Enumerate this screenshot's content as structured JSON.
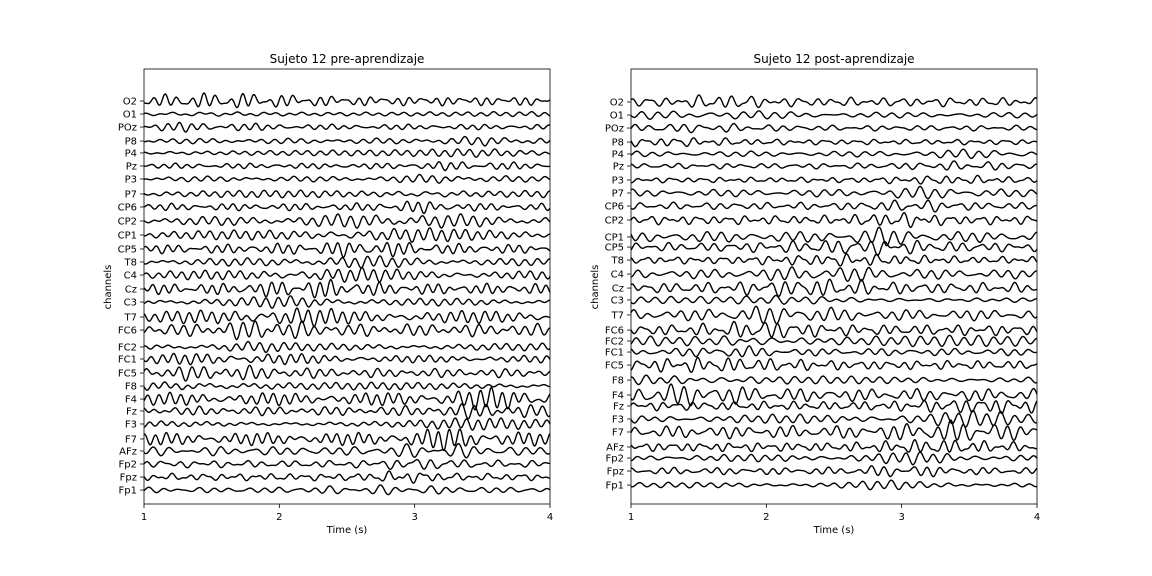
{
  "chart_data": [
    {
      "type": "line",
      "title": "Sujeto 12 pre-aprendizaje",
      "xlabel": "Time (s)",
      "ylabel": "channels",
      "xlim": [
        1,
        4
      ],
      "xticks": [
        1,
        2,
        3,
        4
      ],
      "grid": false,
      "channels": [
        "O2",
        "O1",
        "POz",
        "P8",
        "P4",
        "Pz",
        "P3",
        "P7",
        "CP6",
        "CP2",
        "CP1",
        "CP5",
        "T8",
        "C4",
        "Cz",
        "C3",
        "T7",
        "FC6",
        "FC2",
        "FC1",
        "FC5",
        "F8",
        "F4",
        "Fz",
        "F3",
        "F7",
        "AFz",
        "Fp2",
        "Fpz",
        "Fp1"
      ],
      "channel_offsets": [
        0.0,
        0.93,
        1.86,
        2.86,
        3.71,
        4.64,
        5.57,
        6.64,
        7.57,
        8.57,
        9.57,
        10.57,
        11.5,
        12.43,
        13.43,
        14.36,
        15.43,
        16.36,
        17.57,
        18.43,
        19.43,
        20.36,
        21.29,
        22.14,
        23.07,
        24.14,
        25.0,
        25.93,
        26.86,
        27.79
      ],
      "amplitude_scale": [
        0.5,
        0.3,
        0.3,
        0.3,
        0.3,
        0.3,
        0.3,
        0.4,
        0.4,
        0.5,
        0.5,
        0.5,
        0.4,
        0.5,
        0.6,
        0.4,
        0.7,
        0.7,
        0.4,
        0.4,
        0.5,
        0.4,
        0.7,
        0.5,
        0.4,
        0.7,
        0.5,
        0.4,
        0.4,
        0.3
      ]
    },
    {
      "type": "line",
      "title": "Sujeto 12 post-aprendizaje",
      "xlabel": "Time (s)",
      "ylabel": "channels",
      "xlim": [
        1,
        4
      ],
      "xticks": [
        1,
        2,
        3,
        4
      ],
      "grid": false,
      "channels": [
        "O2",
        "O1",
        "POz",
        "P8",
        "P4",
        "Pz",
        "P3",
        "P7",
        "CP6",
        "CP2",
        "CP1",
        "CP5",
        "T8",
        "C4",
        "Cz",
        "C3",
        "T7",
        "FC6",
        "FC2",
        "FC1",
        "FC5",
        "F8",
        "F4",
        "Fz",
        "F3",
        "F7",
        "AFz",
        "Fp2",
        "Fpz",
        "Fp1"
      ],
      "channel_offsets": [
        0.0,
        0.93,
        1.86,
        2.86,
        3.71,
        4.57,
        5.57,
        6.5,
        7.43,
        8.43,
        9.64,
        10.36,
        11.29,
        12.29,
        13.29,
        14.14,
        15.21,
        16.29,
        17.07,
        17.86,
        18.79,
        19.86,
        20.93,
        21.71,
        22.64,
        23.57,
        24.64,
        25.43,
        26.36,
        27.36
      ],
      "amplitude_scale": [
        0.5,
        0.3,
        0.3,
        0.3,
        0.3,
        0.3,
        0.3,
        0.4,
        0.4,
        0.5,
        0.6,
        0.5,
        0.4,
        0.5,
        0.6,
        0.4,
        0.6,
        0.6,
        0.6,
        0.4,
        0.5,
        0.4,
        0.7,
        0.5,
        0.5,
        0.7,
        0.5,
        0.4,
        0.4,
        0.3
      ]
    }
  ]
}
